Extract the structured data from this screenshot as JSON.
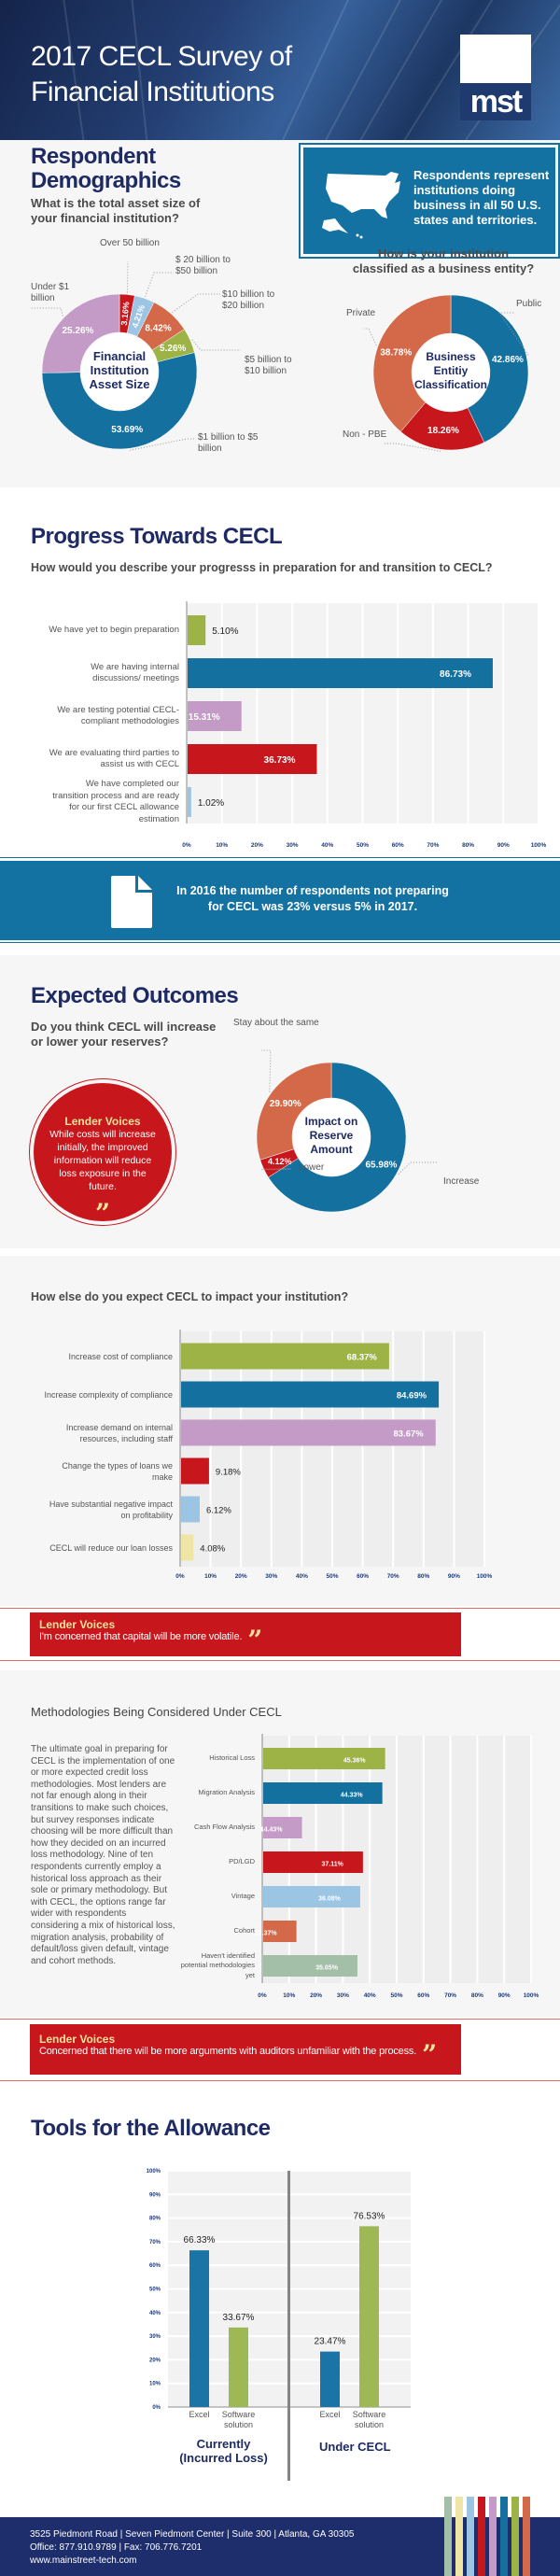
{
  "header": {
    "title_line1": "2017 CECL Survey of",
    "title_line2": "Financial Institutions",
    "logo_text": "mst"
  },
  "demographics": {
    "title_line1": "Respondent",
    "title_line2": "Demographics",
    "question": "What is the total asset size of your financial institution?",
    "us_note": "Respondents represent institutions doing business in all 50 U.S. states and territories.",
    "entity_question": "How is your institution classified as a business entity?"
  },
  "banner_2016": {
    "text": "In 2016 the number of respondents not preparing for CECL was 23% versus 5% in 2017."
  },
  "progress": {
    "title": "Progress Towards CECL",
    "question": "How would you describe your progresss in preparation for and transition to CECL?"
  },
  "outcomes": {
    "title": "Expected Outcomes",
    "question": "Do you think CECL will increase or lower your reserves?",
    "impact_question": "How else do you expect CECL to impact your institution?"
  },
  "lender_voices": [
    {
      "title": "Lender Voices",
      "text": "While costs will increase initially, the improved information will reduce loss exposure in the future."
    },
    {
      "title": "Lender Voices",
      "text": "I'm concerned that capital will be more volatile."
    },
    {
      "title": "Lender Voices",
      "text": "Concerned that there will be more arguments with auditors unfamiliar with the process."
    }
  ],
  "methodologies": {
    "title": "Methodologies Being Considered Under CECL",
    "paragraph": "The ultimate goal in preparing for CECL is the implementation of one or more expected credit loss methodologies. Most lenders are not far enough along in their transitions to make such choices, but survey responses indicate choosing will be more difficult than how they decided on an incurred loss methodology. Nine of ten respondents currently employ a historical loss approach as their sole or primary methodology. But with CECL, the options range far wider with respondents considering a mix of historical loss, migration analysis, probability of default/loss given default, vintage and cohort methods."
  },
  "tools": {
    "title": "Tools for the Allowance"
  },
  "footer": {
    "address": "3525 Piedmont Road | Seven Piedmont Center | Suite 300 | Atlanta, GA 30305",
    "phone": "Office: 877.910.9789 | Fax: 706.776.7201",
    "web": "www.mainstreet-tech.com",
    "stripe_colors": [
      "#a3bfa8",
      "#efe6a6",
      "#9cc5e3",
      "#c8161d",
      "#c39bc6",
      "#14709f",
      "#9db345",
      "#d4694a"
    ]
  },
  "chart_data": [
    {
      "id": "asset",
      "type": "pie",
      "center_label": "Financial Institution Asset Size",
      "slices": [
        {
          "label": "Over 50 billion",
          "value": 3.16,
          "color": "#c8161d"
        },
        {
          "label": "$ 20 billion to $50 billion",
          "value": 4.21,
          "color": "#9cc5e3"
        },
        {
          "label": "$10 billion to $20 billion",
          "value": 8.42,
          "color": "#d4694a"
        },
        {
          "label": "$5 billion to $10 billion",
          "value": 5.26,
          "color": "#9db345"
        },
        {
          "label": "$1 billion to $5 billion",
          "value": 53.69,
          "color": "#14709f"
        },
        {
          "label": "Under $1 billion",
          "value": 25.26,
          "color": "#c39bc6"
        }
      ]
    },
    {
      "id": "entity",
      "type": "pie",
      "center_label": "Business Entitiy Classification",
      "slices": [
        {
          "label": "Public",
          "value": 42.86,
          "color": "#14709f"
        },
        {
          "label": "Non - PBE",
          "value": 18.26,
          "color": "#c8161d"
        },
        {
          "label": "Private",
          "value": 38.78,
          "color": "#d4694a"
        }
      ]
    },
    {
      "id": "progress",
      "type": "bar",
      "xlim": [
        0,
        100
      ],
      "ticks": [
        "0%",
        "10%",
        "20%",
        "30%",
        "40%",
        "50%",
        "60%",
        "70%",
        "80%",
        "90%",
        "100%"
      ],
      "categories": [
        "We have yet to begin preparation",
        "We are having internal discussions/ meetings",
        "We are testing potential CECL-compliant methodologies",
        "We are evaluating third parties to assist us with CECL",
        "We have completed our transition process and are ready for our first CECL allowance estimation"
      ],
      "values": [
        5.1,
        86.73,
        15.31,
        36.73,
        1.02
      ],
      "colors": [
        "#9db345",
        "#14709f",
        "#c39bc6",
        "#c8161d",
        "#9cc5e3"
      ]
    },
    {
      "id": "reserve",
      "type": "pie",
      "center_label": "Impact on Reserve Amount",
      "slices": [
        {
          "label": "Increase",
          "value": 65.98,
          "color": "#14709f"
        },
        {
          "label": "Lower",
          "value": 4.12,
          "color": "#c8161d"
        },
        {
          "label": "Stay about the same",
          "value": 29.9,
          "color": "#d4694a"
        }
      ]
    },
    {
      "id": "impact",
      "type": "bar",
      "xlim": [
        0,
        100
      ],
      "ticks": [
        "0%",
        "10%",
        "20%",
        "30%",
        "40%",
        "50%",
        "60%",
        "70%",
        "80%",
        "90%",
        "100%"
      ],
      "categories": [
        "Increase cost of compliance",
        "Increase complexity of compliance",
        "Increase demand on internal resources, including staff",
        "Change the types of loans we make",
        "Have substantial negative impact on profitability",
        "CECL will reduce our loan losses"
      ],
      "values": [
        68.37,
        84.69,
        83.67,
        9.18,
        6.12,
        4.08
      ],
      "colors": [
        "#9db345",
        "#14709f",
        "#c39bc6",
        "#c8161d",
        "#9cc5e3",
        "#efe6a6"
      ]
    },
    {
      "id": "methods",
      "type": "bar",
      "xlim": [
        0,
        100
      ],
      "ticks": [
        "0%",
        "10%",
        "20%",
        "30%",
        "40%",
        "50%",
        "60%",
        "70%",
        "80%",
        "90%",
        "100%"
      ],
      "categories": [
        "Historical Loss",
        "Migration Analysis",
        "Cash Flow Analysis",
        "PD/LGD",
        "Vintage",
        "Cohort",
        "Haven't identified potential methodologies yet"
      ],
      "values": [
        45.36,
        44.33,
        14.43,
        37.11,
        36.08,
        12.37,
        35.05
      ],
      "colors": [
        "#9db345",
        "#14709f",
        "#c39bc6",
        "#c8161d",
        "#9cc5e3",
        "#d4694a",
        "#a3bfa8"
      ]
    },
    {
      "id": "tools",
      "type": "bar",
      "ylim": [
        0,
        100
      ],
      "ticks": [
        "0%",
        "10%",
        "20%",
        "30%",
        "40%",
        "50%",
        "60%",
        "70%",
        "80%",
        "90%",
        "100%"
      ],
      "groups": [
        {
          "name": "Currently (Incurred Loss)",
          "categories": [
            "Excel",
            "Software solution"
          ],
          "values": [
            66.33,
            33.67
          ]
        },
        {
          "name": "Under CECL",
          "categories": [
            "Excel",
            "Software solution"
          ],
          "values": [
            23.47,
            76.53
          ]
        }
      ],
      "colors": [
        "#1a74a5",
        "#9db855"
      ]
    }
  ]
}
